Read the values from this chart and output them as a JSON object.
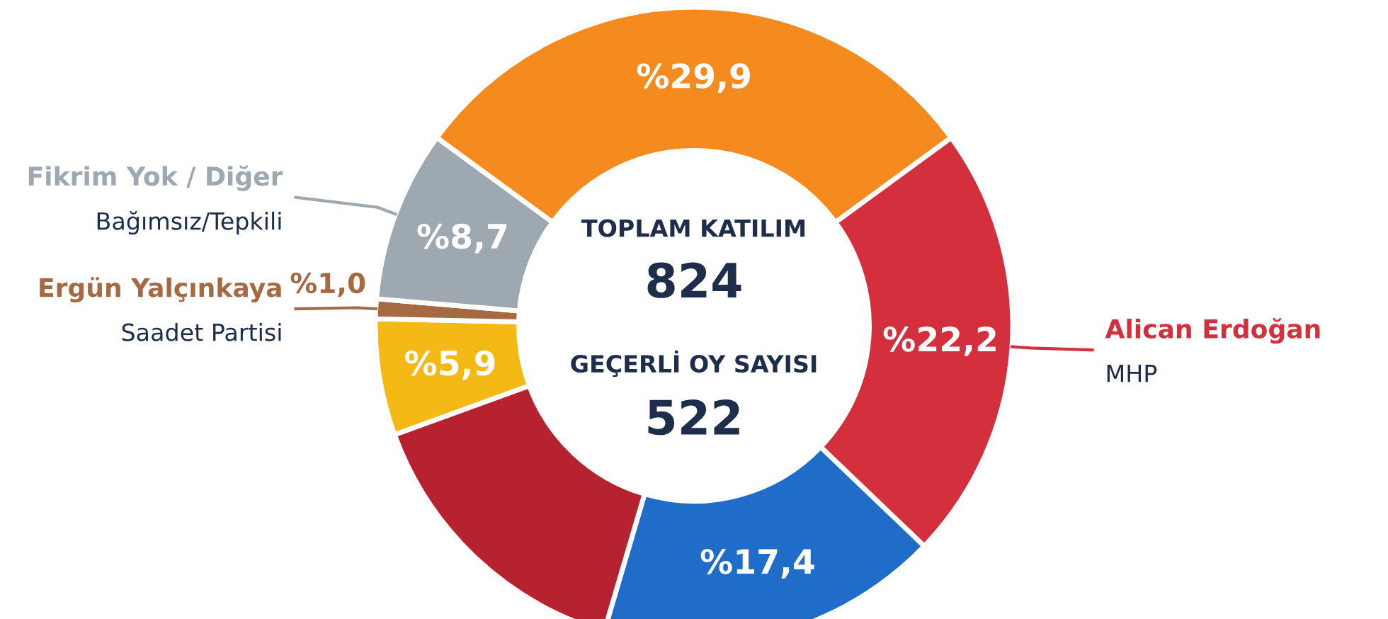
{
  "chart_data": {
    "type": "donut",
    "categories": [
      null,
      "Alican Erdoğan\nMHP",
      null,
      null,
      null,
      "Ergün Yalçınkaya\nSaadet Partisi",
      "Fikrim Yok / Diğer\nBağımsız/Tepkili"
    ],
    "values": [
      29.9,
      22.2,
      17.4,
      14.9,
      5.9,
      1.0,
      8.7
    ],
    "colors": [
      "#f58a1f",
      "#d42f3c",
      "#1f6cc9",
      "#b72230",
      "#f4b915",
      "#a66a43",
      "#9ea8b1"
    ],
    "value_labels": [
      "%29,9",
      "%22,2",
      "%17,4",
      null,
      "%5,9",
      "%1,0",
      "%8,7"
    ],
    "annotations": [
      "TOPLAM KATILIM",
      "824",
      "GEÇERLİ OY SAYISI",
      "522"
    ]
  }
}
